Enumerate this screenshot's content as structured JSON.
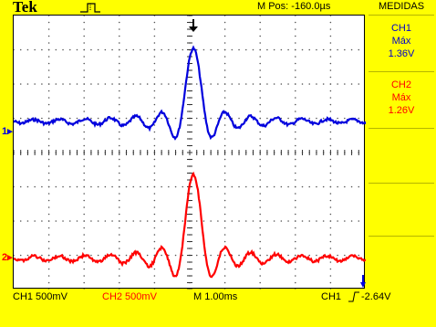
{
  "header": {
    "brand": "Tek",
    "trigger_status_icon": "pulse-trigger-icon",
    "m_pos": "M Pos: -160.0µs"
  },
  "panel": {
    "title": "MEDIDAS",
    "measurements": [
      {
        "channel": "CH1",
        "type": "Máx",
        "value": "1.36V",
        "color": "#0000cc"
      },
      {
        "channel": "CH2",
        "type": "Máx",
        "value": "1.26V",
        "color": "#ff0000"
      }
    ]
  },
  "markers": {
    "ch1": "1",
    "ch2": "2"
  },
  "status": {
    "ch1": "CH1  500mV",
    "ch2": "CH2  500mV",
    "timebase": "M 1.00ms",
    "trigger_source": "CH1",
    "trigger_level": "-2.64V"
  },
  "colors": {
    "ch1": "#0000dd",
    "ch2": "#ff0000",
    "background": "#ffff00"
  }
}
